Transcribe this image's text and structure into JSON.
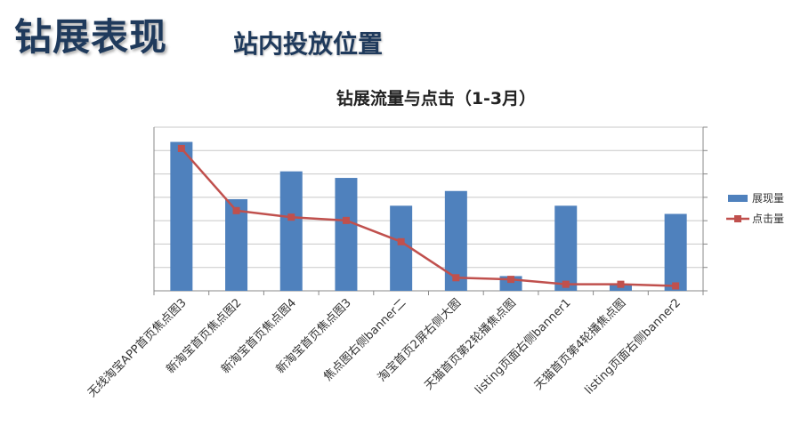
{
  "page": {
    "title": "钻展表现",
    "subtitle": "站内投放位置"
  },
  "chart_data": {
    "type": "bar",
    "title": "钻展流量与点击（1-3月）",
    "categories": [
      "无线淘宝APP首页焦点图3",
      "新淘宝首页焦点图2",
      "新淘宝首页焦点图4",
      "新淘宝首页焦点图3",
      "焦点图右侧banner二",
      "淘宝首页2屏右侧大图",
      "天猫首页第2轮播焦点图",
      "listing页面右侧banner1",
      "天猫首页第4轮播焦点图",
      "listing页面右侧banner2"
    ],
    "series": [
      {
        "name": "展现量",
        "kind": "bar",
        "color": "#4f81bd",
        "values": [
          0.91,
          0.56,
          0.73,
          0.69,
          0.52,
          0.61,
          0.09,
          0.52,
          0.04,
          0.47
        ]
      },
      {
        "name": "点击量",
        "kind": "line",
        "color": "#c0504d",
        "values": [
          0.87,
          0.49,
          0.45,
          0.43,
          0.3,
          0.08,
          0.07,
          0.04,
          0.04,
          0.03
        ]
      }
    ],
    "ylim": [
      0,
      1
    ],
    "grid": true,
    "legend_position": "right",
    "y_tick_labels_shown": false
  }
}
